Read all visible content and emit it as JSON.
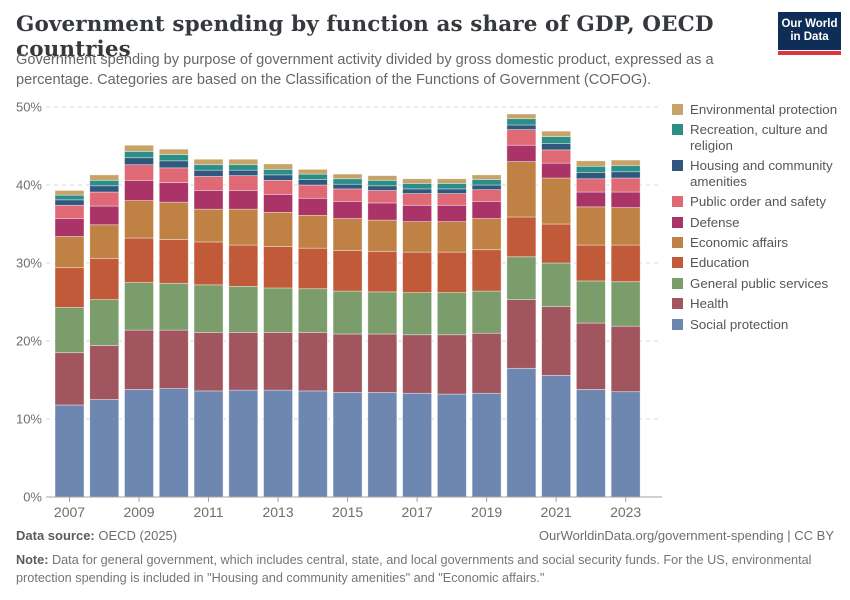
{
  "header": {
    "title": "Government spending by function as share of GDP, OECD countries",
    "subtitle": "Government spending by purpose of government activity divided by gross domestic product, expressed as a percentage. Categories are based on the Classification of the Functions of Government (COFOG).",
    "logo": {
      "line1": "Our World",
      "line2": "in Data",
      "bg_color": "#0f2e57",
      "accent_color": "#dc3545"
    }
  },
  "chart_data": {
    "type": "bar",
    "stacked": true,
    "title": "Government spending by function as share of GDP, OECD countries",
    "x": [
      2007,
      2008,
      2009,
      2010,
      2011,
      2012,
      2013,
      2014,
      2015,
      2016,
      2017,
      2018,
      2019,
      2020,
      2021,
      2022,
      2023
    ],
    "x_tick_labels": [
      "2007",
      "2009",
      "2011",
      "2013",
      "2015",
      "2017",
      "2019",
      "2021",
      "2023"
    ],
    "ylim": [
      0,
      50
    ],
    "yticks": [
      0,
      10,
      20,
      30,
      40,
      50
    ],
    "ytick_suffix": "%",
    "grid": "dashed",
    "legend_position": "right",
    "series": [
      {
        "name": "Social protection",
        "color": "#6e87b1",
        "values": [
          11.8,
          12.5,
          13.8,
          13.9,
          13.6,
          13.7,
          13.7,
          13.6,
          13.4,
          13.4,
          13.3,
          13.2,
          13.3,
          16.5,
          15.6,
          13.8,
          13.5
        ]
      },
      {
        "name": "Health",
        "color": "#a1555e",
        "values": [
          6.7,
          6.9,
          7.6,
          7.5,
          7.5,
          7.4,
          7.4,
          7.5,
          7.5,
          7.5,
          7.5,
          7.6,
          7.7,
          8.8,
          8.8,
          8.5,
          8.4
        ]
      },
      {
        "name": "General public services",
        "color": "#7a9d6b",
        "values": [
          5.8,
          5.9,
          6.1,
          6.0,
          6.1,
          5.9,
          5.7,
          5.6,
          5.5,
          5.4,
          5.4,
          5.4,
          5.4,
          5.5,
          5.6,
          5.4,
          5.7
        ]
      },
      {
        "name": "Education",
        "color": "#c15a39",
        "values": [
          5.1,
          5.3,
          5.7,
          5.6,
          5.5,
          5.3,
          5.3,
          5.2,
          5.2,
          5.2,
          5.2,
          5.2,
          5.3,
          5.1,
          5.0,
          4.6,
          4.7
        ]
      },
      {
        "name": "Economic affairs",
        "color": "#bf8244",
        "values": [
          4.0,
          4.3,
          4.8,
          4.8,
          4.2,
          4.6,
          4.4,
          4.2,
          4.1,
          4.0,
          3.9,
          3.9,
          4.0,
          7.1,
          5.9,
          4.9,
          4.8
        ]
      },
      {
        "name": "Defense",
        "color": "#aa3368",
        "values": [
          2.3,
          2.4,
          2.6,
          2.5,
          2.4,
          2.4,
          2.3,
          2.2,
          2.2,
          2.2,
          2.1,
          2.1,
          2.2,
          2.1,
          1.9,
          1.9,
          2.0
        ]
      },
      {
        "name": "Public order and safety",
        "color": "#df6a76",
        "values": [
          1.7,
          1.8,
          2.0,
          1.9,
          1.8,
          1.9,
          1.8,
          1.7,
          1.6,
          1.6,
          1.5,
          1.5,
          1.5,
          2.0,
          1.7,
          1.7,
          1.8
        ]
      },
      {
        "name": "Housing and community amenities",
        "color": "#30577d",
        "values": [
          0.7,
          0.8,
          0.9,
          0.9,
          0.8,
          0.7,
          0.7,
          0.7,
          0.6,
          0.6,
          0.6,
          0.6,
          0.6,
          0.6,
          0.8,
          0.8,
          0.8
        ]
      },
      {
        "name": "Recreation, culture and religion",
        "color": "#2b8e87",
        "values": [
          0.6,
          0.7,
          0.8,
          0.8,
          0.7,
          0.7,
          0.7,
          0.7,
          0.7,
          0.7,
          0.7,
          0.7,
          0.7,
          0.8,
          0.9,
          0.8,
          0.8
        ]
      },
      {
        "name": "Environmental protection",
        "color": "#c7a36a",
        "values": [
          0.6,
          0.7,
          0.8,
          0.7,
          0.7,
          0.7,
          0.7,
          0.6,
          0.6,
          0.6,
          0.6,
          0.6,
          0.6,
          0.6,
          0.7,
          0.7,
          0.7
        ]
      }
    ]
  },
  "footer": {
    "source_label": "Data source:",
    "source_value": " OECD (2025)",
    "link": "OurWorldinData.org/government-spending",
    "separator": " | ",
    "license": "CC BY",
    "note_label": "Note:",
    "note_text": " Data for general government, which includes central, state, and local governments and social security funds. For the US, environmental protection spending is included in \"Housing and community amenities\" and \"Economic affairs.\""
  }
}
